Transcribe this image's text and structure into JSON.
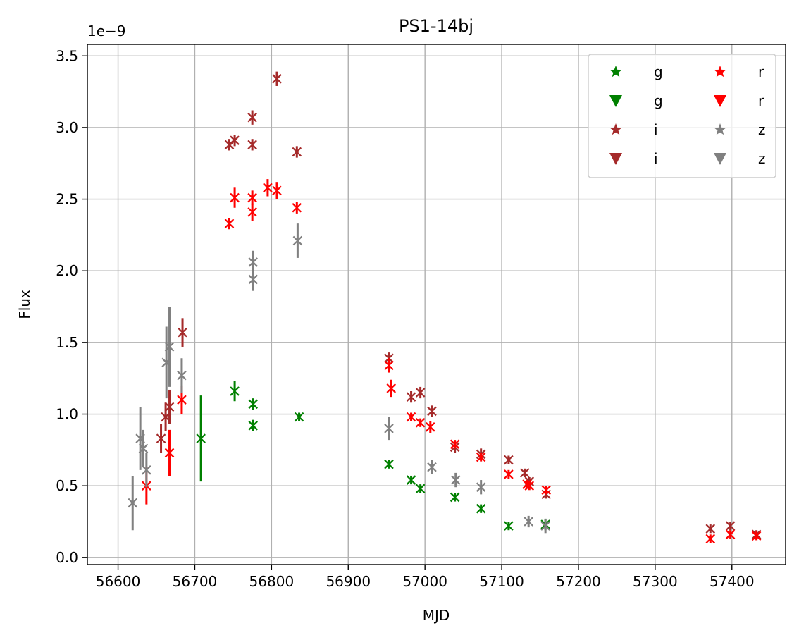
{
  "chart_data": {
    "type": "scatter",
    "title": "PS1-14bj",
    "xlabel": "MJD",
    "ylabel": "Flux",
    "y_offset_label": "1e−9",
    "y_scale": 1e-09,
    "xlim": [
      56560,
      57470
    ],
    "ylim": [
      -0.05,
      3.58
    ],
    "x_ticks": [
      56600,
      56700,
      56800,
      56900,
      57000,
      57100,
      57200,
      57300,
      57400
    ],
    "x_tick_labels": [
      "56600",
      "56700",
      "56800",
      "56900",
      "57000",
      "57100",
      "57200",
      "57300",
      "57400"
    ],
    "y_ticks": [
      0.0,
      0.5,
      1.0,
      1.5,
      2.0,
      2.5,
      3.0,
      3.5
    ],
    "y_tick_labels": [
      "0.0",
      "0.5",
      "1.0",
      "1.5",
      "2.0",
      "2.5",
      "3.0",
      "3.5"
    ],
    "grid": true,
    "legend": {
      "placement": "upper right",
      "columns": 2,
      "entries": [
        {
          "label": "g",
          "marker": "star",
          "color": "#008000"
        },
        {
          "label": "g",
          "marker": "triangle-down",
          "color": "#008000"
        },
        {
          "label": "i",
          "marker": "star",
          "color": "#a52a2a"
        },
        {
          "label": "i",
          "marker": "triangle-down",
          "color": "#a52a2a"
        },
        {
          "label": "r",
          "marker": "star",
          "color": "#ff0000"
        },
        {
          "label": "r",
          "marker": "triangle-down",
          "color": "#ff0000"
        },
        {
          "label": "z",
          "marker": "star",
          "color": "#808080"
        },
        {
          "label": "z",
          "marker": "triangle-down",
          "color": "#808080"
        }
      ]
    },
    "series": [
      {
        "name": "g",
        "color": "#008000",
        "marker": "x",
        "points": [
          {
            "x": 56708,
            "y": 0.83,
            "err": 0.3
          },
          {
            "x": 56752,
            "y": 1.16,
            "err": 0.07
          },
          {
            "x": 56776,
            "y": 1.07,
            "err": 0.04
          },
          {
            "x": 56776,
            "y": 0.92,
            "err": 0.04
          },
          {
            "x": 56836,
            "y": 0.98,
            "err": 0.03
          },
          {
            "x": 56953,
            "y": 0.65,
            "err": 0.03
          },
          {
            "x": 56982,
            "y": 0.54,
            "err": 0.03
          },
          {
            "x": 56994,
            "y": 0.48,
            "err": 0.03
          },
          {
            "x": 57039,
            "y": 0.42,
            "err": 0.03
          },
          {
            "x": 57073,
            "y": 0.34,
            "err": 0.03
          },
          {
            "x": 57109,
            "y": 0.22,
            "err": 0.03
          },
          {
            "x": 57157,
            "y": 0.23,
            "err": 0.04
          }
        ]
      },
      {
        "name": "i",
        "color": "#a52a2a",
        "marker": "x",
        "points": [
          {
            "x": 56656,
            "y": 0.83,
            "err": 0.1
          },
          {
            "x": 56662,
            "y": 0.98,
            "err": 0.1
          },
          {
            "x": 56667,
            "y": 1.05,
            "err": 0.12
          },
          {
            "x": 56684,
            "y": 1.57,
            "err": 0.1
          },
          {
            "x": 56745,
            "y": 2.88,
            "err": 0.04
          },
          {
            "x": 56752,
            "y": 2.91,
            "err": 0.04
          },
          {
            "x": 56775,
            "y": 3.07,
            "err": 0.05
          },
          {
            "x": 56775,
            "y": 2.88,
            "err": 0.04
          },
          {
            "x": 56807,
            "y": 3.34,
            "err": 0.05
          },
          {
            "x": 56833,
            "y": 2.83,
            "err": 0.04
          },
          {
            "x": 56953,
            "y": 1.39,
            "err": 0.04
          },
          {
            "x": 56982,
            "y": 1.12,
            "err": 0.04
          },
          {
            "x": 56994,
            "y": 1.15,
            "err": 0.04
          },
          {
            "x": 57009,
            "y": 1.02,
            "err": 0.04
          },
          {
            "x": 57039,
            "y": 0.77,
            "err": 0.04
          },
          {
            "x": 57073,
            "y": 0.72,
            "err": 0.04
          },
          {
            "x": 57109,
            "y": 0.68,
            "err": 0.03
          },
          {
            "x": 57130,
            "y": 0.59,
            "err": 0.03
          },
          {
            "x": 57136,
            "y": 0.53,
            "err": 0.03
          },
          {
            "x": 57158,
            "y": 0.44,
            "err": 0.03
          },
          {
            "x": 57372,
            "y": 0.2,
            "err": 0.03
          },
          {
            "x": 57398,
            "y": 0.22,
            "err": 0.03
          },
          {
            "x": 57432,
            "y": 0.16,
            "err": 0.03
          }
        ]
      },
      {
        "name": "r",
        "color": "#ff0000",
        "marker": "x",
        "points": [
          {
            "x": 56637,
            "y": 0.5,
            "err": 0.13
          },
          {
            "x": 56667,
            "y": 0.73,
            "err": 0.16
          },
          {
            "x": 56683,
            "y": 1.1,
            "err": 0.1
          },
          {
            "x": 56745,
            "y": 2.33,
            "err": 0.04
          },
          {
            "x": 56752,
            "y": 2.51,
            "err": 0.07
          },
          {
            "x": 56775,
            "y": 2.51,
            "err": 0.05
          },
          {
            "x": 56775,
            "y": 2.41,
            "err": 0.06
          },
          {
            "x": 56795,
            "y": 2.58,
            "err": 0.06
          },
          {
            "x": 56807,
            "y": 2.56,
            "err": 0.06
          },
          {
            "x": 56833,
            "y": 2.44,
            "err": 0.04
          },
          {
            "x": 56953,
            "y": 1.34,
            "err": 0.05
          },
          {
            "x": 56956,
            "y": 1.18,
            "err": 0.06
          },
          {
            "x": 56982,
            "y": 0.98,
            "err": 0.03
          },
          {
            "x": 56994,
            "y": 0.94,
            "err": 0.03
          },
          {
            "x": 57007,
            "y": 0.91,
            "err": 0.04
          },
          {
            "x": 57039,
            "y": 0.79,
            "err": 0.03
          },
          {
            "x": 57073,
            "y": 0.7,
            "err": 0.03
          },
          {
            "x": 57109,
            "y": 0.58,
            "err": 0.03
          },
          {
            "x": 57133,
            "y": 0.51,
            "err": 0.03
          },
          {
            "x": 57136,
            "y": 0.5,
            "err": 0.03
          },
          {
            "x": 57158,
            "y": 0.47,
            "err": 0.03
          },
          {
            "x": 57372,
            "y": 0.13,
            "err": 0.03
          },
          {
            "x": 57398,
            "y": 0.16,
            "err": 0.03
          },
          {
            "x": 57432,
            "y": 0.15,
            "err": 0.03
          }
        ]
      },
      {
        "name": "z",
        "color": "#808080",
        "marker": "x",
        "points": [
          {
            "x": 56619,
            "y": 0.38,
            "err": 0.19
          },
          {
            "x": 56629,
            "y": 0.83,
            "err": 0.22
          },
          {
            "x": 56633,
            "y": 0.76,
            "err": 0.13
          },
          {
            "x": 56637,
            "y": 0.61,
            "err": 0.12
          },
          {
            "x": 56663,
            "y": 1.36,
            "err": 0.25
          },
          {
            "x": 56667,
            "y": 1.47,
            "err": 0.28
          },
          {
            "x": 56683,
            "y": 1.27,
            "err": 0.12
          },
          {
            "x": 56776,
            "y": 2.06,
            "err": 0.08
          },
          {
            "x": 56776,
            "y": 1.94,
            "err": 0.08
          },
          {
            "x": 56834,
            "y": 2.21,
            "err": 0.12
          },
          {
            "x": 56953,
            "y": 0.9,
            "err": 0.08
          },
          {
            "x": 57009,
            "y": 0.63,
            "err": 0.05
          },
          {
            "x": 57040,
            "y": 0.54,
            "err": 0.05
          },
          {
            "x": 57073,
            "y": 0.49,
            "err": 0.05
          },
          {
            "x": 57135,
            "y": 0.25,
            "err": 0.04
          },
          {
            "x": 57157,
            "y": 0.22,
            "err": 0.05
          }
        ]
      }
    ]
  }
}
